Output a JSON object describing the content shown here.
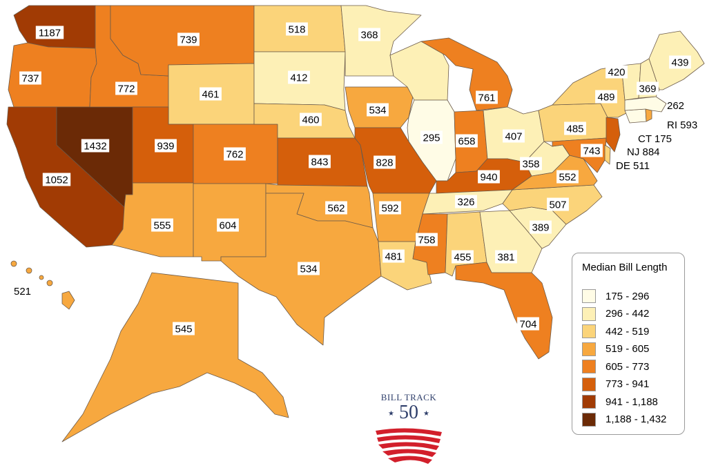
{
  "legend": {
    "title": "Median Bill Length",
    "bins": [
      {
        "label": "175 - 296",
        "color": "#fffce6"
      },
      {
        "label": "296 - 442",
        "color": "#fdf0b6"
      },
      {
        "label": "442 - 519",
        "color": "#fbd47a"
      },
      {
        "label": "519 - 605",
        "color": "#f7a83f"
      },
      {
        "label": "605 - 773",
        "color": "#ee8020"
      },
      {
        "label": "773 - 941",
        "color": "#d55f0b"
      },
      {
        "label": "941 - 1,188",
        "color": "#a13b04"
      },
      {
        "label": "1,188 - 1,432",
        "color": "#6b2a06"
      }
    ]
  },
  "logo": {
    "text": "BILL TRACK",
    "number": "50",
    "stars": "★ ★"
  },
  "states": [
    {
      "id": "WA",
      "value": "1187",
      "color": "#a13b04"
    },
    {
      "id": "OR",
      "value": "737",
      "color": "#ee8020"
    },
    {
      "id": "CA",
      "value": "1052",
      "color": "#a13b04"
    },
    {
      "id": "NV",
      "value": "1432",
      "color": "#6b2a06"
    },
    {
      "id": "ID",
      "value": "772",
      "color": "#ee8020"
    },
    {
      "id": "MT",
      "value": "739",
      "color": "#ee8020"
    },
    {
      "id": "WY",
      "value": "461",
      "color": "#fbd47a"
    },
    {
      "id": "UT",
      "value": "939",
      "color": "#d55f0b"
    },
    {
      "id": "AZ",
      "value": "555",
      "color": "#f7a83f"
    },
    {
      "id": "CO",
      "value": "762",
      "color": "#ee8020"
    },
    {
      "id": "NM",
      "value": "604",
      "color": "#f7a83f"
    },
    {
      "id": "ND",
      "value": "518",
      "color": "#fbd47a"
    },
    {
      "id": "SD",
      "value": "412",
      "color": "#fdf0b6"
    },
    {
      "id": "NE",
      "value": "460",
      "color": "#fbd47a"
    },
    {
      "id": "KS",
      "value": "843",
      "color": "#d55f0b"
    },
    {
      "id": "OK",
      "value": "562",
      "color": "#f7a83f"
    },
    {
      "id": "TX",
      "value": "534",
      "color": "#f7a83f"
    },
    {
      "id": "MN",
      "value": "368",
      "color": "#fdf0b6"
    },
    {
      "id": "IA",
      "value": "534",
      "color": "#f7a83f"
    },
    {
      "id": "MO",
      "value": "828",
      "color": "#d55f0b"
    },
    {
      "id": "AR",
      "value": "592",
      "color": "#f7a83f"
    },
    {
      "id": "LA",
      "value": "481",
      "color": "#fbd47a"
    },
    {
      "id": "WI",
      "value": "",
      "color": "#fdf0b6"
    },
    {
      "id": "IL",
      "value": "295",
      "color": "#fffce6"
    },
    {
      "id": "MI",
      "value": "761",
      "color": "#ee8020"
    },
    {
      "id": "IN",
      "value": "658",
      "color": "#ee8020"
    },
    {
      "id": "OH",
      "value": "407",
      "color": "#fdf0b6"
    },
    {
      "id": "KY",
      "value": "940",
      "color": "#d55f0b"
    },
    {
      "id": "TN",
      "value": "326",
      "color": "#fdf0b6"
    },
    {
      "id": "MS",
      "value": "758",
      "color": "#ee8020"
    },
    {
      "id": "AL",
      "value": "455",
      "color": "#fbd47a"
    },
    {
      "id": "GA",
      "value": "381",
      "color": "#fdf0b6"
    },
    {
      "id": "FL",
      "value": "704",
      "color": "#ee8020"
    },
    {
      "id": "SC",
      "value": "389",
      "color": "#fdf0b6"
    },
    {
      "id": "NC",
      "value": "507",
      "color": "#fbd47a"
    },
    {
      "id": "VA",
      "value": "552",
      "color": "#f7a83f"
    },
    {
      "id": "WV",
      "value": "358",
      "color": "#fdf0b6"
    },
    {
      "id": "PA",
      "value": "485",
      "color": "#fbd47a"
    },
    {
      "id": "NY",
      "value": "489",
      "color": "#fbd47a"
    },
    {
      "id": "VT",
      "value": "420",
      "color": "#fdf0b6"
    },
    {
      "id": "NH",
      "value": "369",
      "color": "#fdf0b6"
    },
    {
      "id": "ME",
      "value": "439",
      "color": "#fdf0b6"
    },
    {
      "id": "MA",
      "value": "262",
      "color": "#fffce6"
    },
    {
      "id": "MD",
      "value": "743",
      "color": "#ee8020"
    },
    {
      "id": "AK",
      "value": "545",
      "color": "#f7a83f"
    },
    {
      "id": "HI",
      "value": "521",
      "color": "#f7a83f"
    },
    {
      "id": "RI",
      "value": "593",
      "color": "#f7a83f"
    },
    {
      "id": "CT",
      "value": "175",
      "color": "#fffce6"
    },
    {
      "id": "NJ",
      "value": "884",
      "color": "#d55f0b"
    },
    {
      "id": "DE",
      "value": "511",
      "color": "#fbd47a"
    }
  ],
  "outer_labels": {
    "RI": "RI 593",
    "CT": "CT 175",
    "NJ": "NJ 884",
    "DE": "DE 511",
    "HI": "521"
  }
}
